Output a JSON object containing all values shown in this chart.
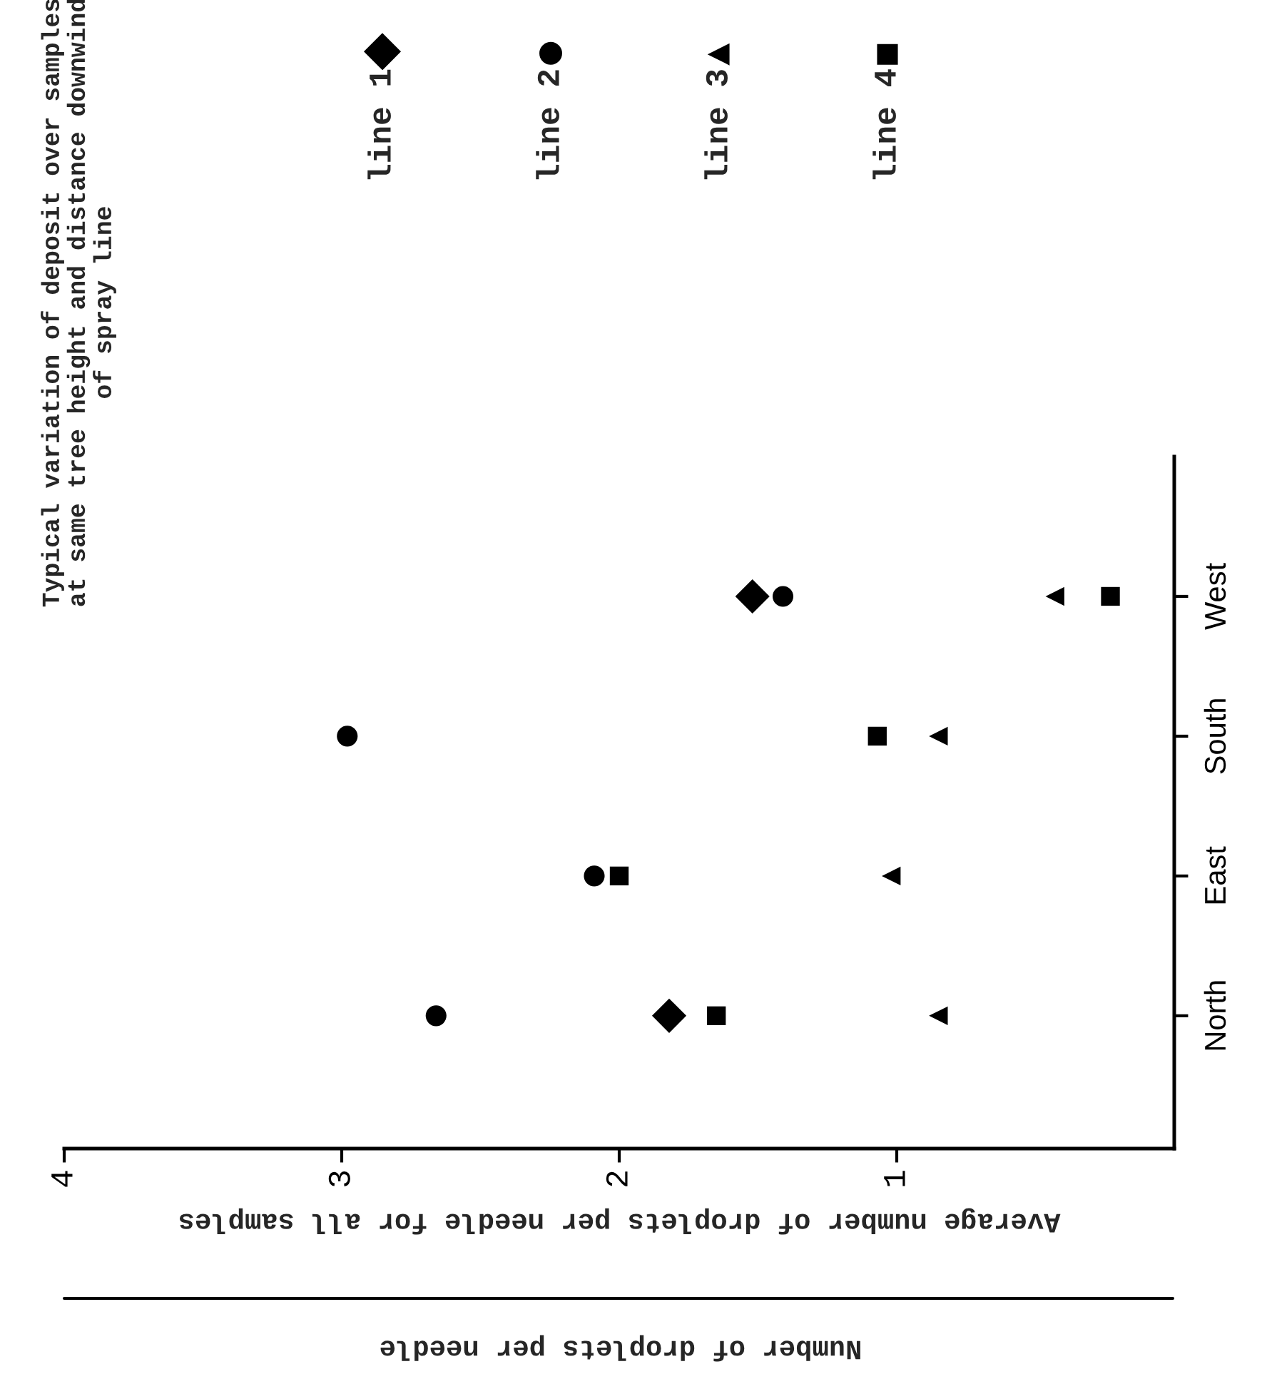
{
  "chart_data": {
    "type": "scatter",
    "orientation": "horizontal",
    "title": "Typical variation of deposit over samples\nat same tree height and distance downwind\nof spray line",
    "xlabel": "Average number of droplets per needle for all samples",
    "annotations": [
      "Number of droplets per needle"
    ],
    "categories": [
      "West",
      "South",
      "East",
      "North"
    ],
    "xlim": [
      4,
      0
    ],
    "xticks": [
      4,
      3,
      2,
      1
    ],
    "grid": false,
    "legend": "top right",
    "series": [
      {
        "name": "line 1",
        "color": "#000000",
        "marker": "diamond",
        "values": [
          1.52,
          null,
          null,
          1.82
        ]
      },
      {
        "name": "line 2",
        "color": "#000000",
        "marker": "circle",
        "values": [
          1.41,
          2.98,
          2.09,
          2.66
        ]
      },
      {
        "name": "line 3",
        "color": "#000000",
        "marker": "triangle",
        "values": [
          0.43,
          0.85,
          1.02,
          0.85
        ]
      },
      {
        "name": "line 4",
        "color": "#000000",
        "marker": "square",
        "values": [
          0.23,
          1.07,
          2.0,
          1.65
        ]
      }
    ]
  }
}
